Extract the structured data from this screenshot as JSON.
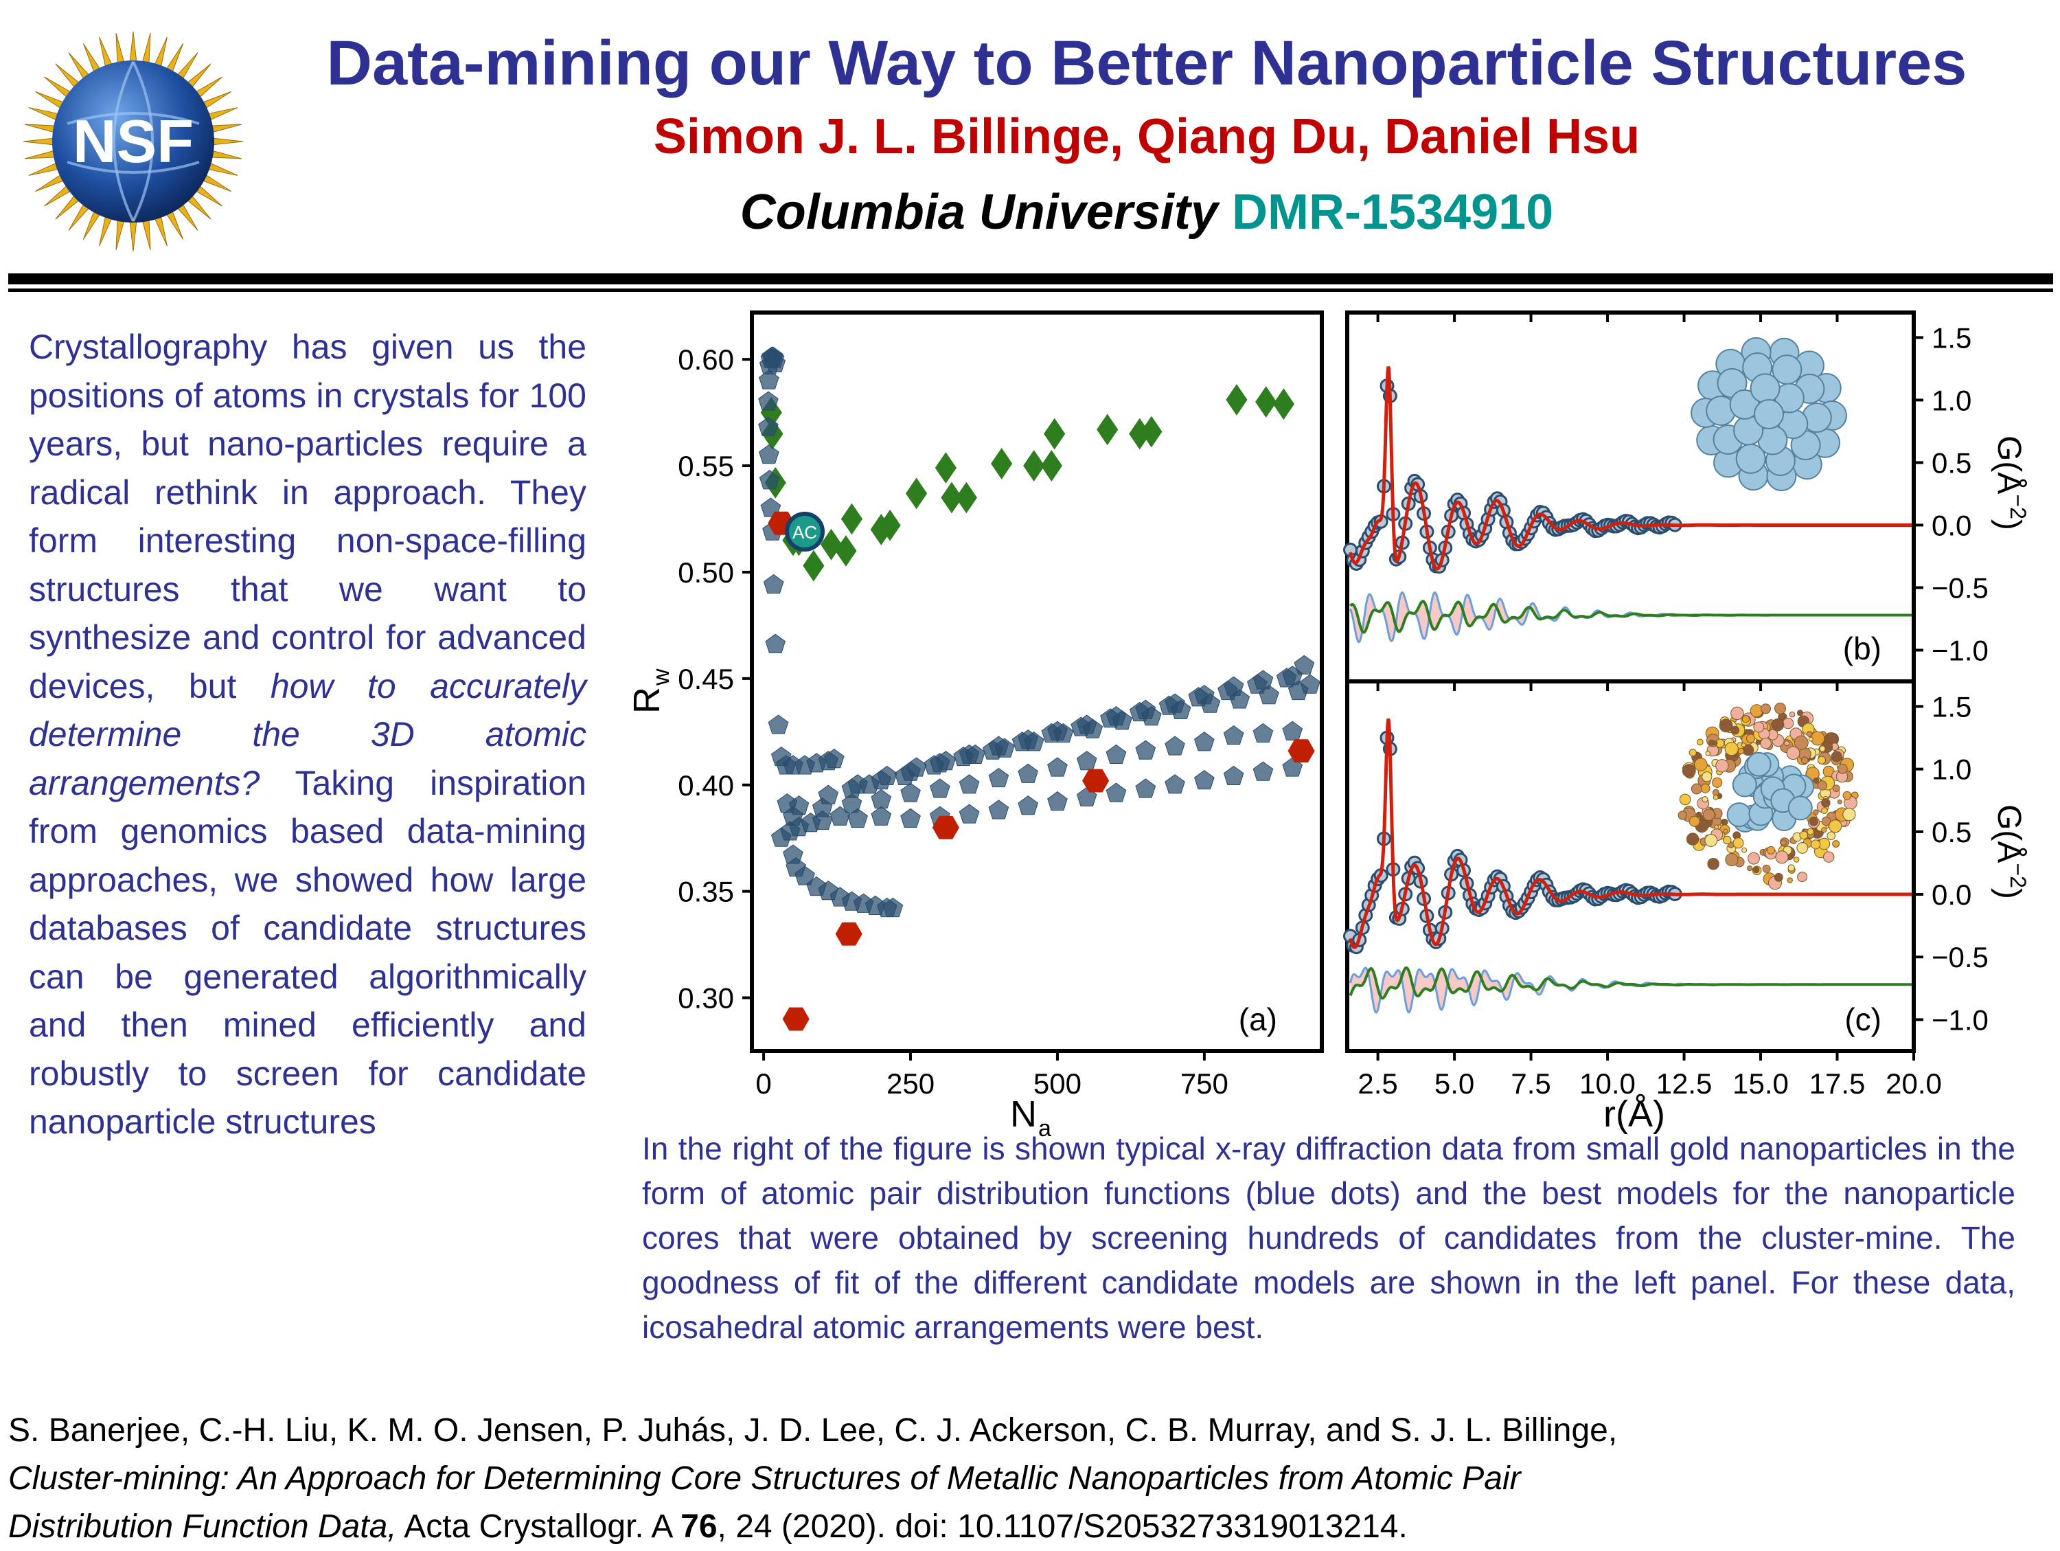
{
  "header": {
    "logo_text": "NSF",
    "title": "Data-mining our Way to Better Nanoparticle Structures",
    "authors": "Simon J. L. Billinge, Qiang Du, Daniel Hsu",
    "institution": "Columbia University",
    "award": "DMR-1534910"
  },
  "left_text": {
    "p1": "Crystallography has given us the positions of atoms in crystals for 100 years, but nano-particles require a radical rethink in approach. They form interesting non-space-filling structures that we want to synthesize and control for advanced devices, but ",
    "p2_italic": "how to accurately determine the 3D atomic arrangements?",
    "p3": " Taking inspiration from genomics based data-mining approaches, we showed how large databases of candidate structures can be generated algorithmically and then mined efficiently and robustly to screen for candidate nanoparticle structures"
  },
  "caption": "In the right of the figure is shown typical x-ray diffraction data from small gold nanoparticles in the form of atomic pair distribution functions (blue dots) and the best models for the nanoparticle cores that were obtained by screening hundreds of candidates from the cluster-mine. The goodness of fit of the different candidate models are shown in the left panel. For these data, icosahedral atomic arrangements were best.",
  "reference": {
    "authors": "S. Banerjee, C.-H. Liu, K. M. O. Jensen, P. Juhás, J. D. Lee, C. J. Ackerson, C. B. Murray, and S. J. L. Billinge,",
    "title_part1": "Cluster-mining: An Approach for Determining Core Structures of Metallic Nanoparticles from Atomic Pair",
    "title_part2": "Distribution Function Data,",
    "journal": " Acta Crystallogr. A ",
    "volume": "76",
    "rest": ", 24 (2020). doi: 10.1107/S2053273319013214."
  },
  "colors": {
    "title": "#2e3192",
    "authors": "#c00000",
    "award": "#00948f",
    "blue_points": "#2a4d6e",
    "green_points": "#2e7d1e",
    "red_points": "#c02000"
  },
  "chart_data": [
    {
      "type": "scatter",
      "panel_label": "(a)",
      "xlabel": "N",
      "xlabel_sub": "a",
      "ylabel": "R",
      "ylabel_sub": "w",
      "xlim": [
        -20,
        950
      ],
      "ylim": [
        0.275,
        0.622
      ],
      "xticks": [
        0,
        250,
        500,
        750
      ],
      "yticks": [
        0.3,
        0.35,
        0.4,
        0.45,
        0.5,
        0.55,
        0.6
      ],
      "ytick_labels": [
        "0.30",
        "0.35",
        "0.40",
        "0.45",
        "0.50",
        "0.55",
        "0.60"
      ],
      "annotation": "AC",
      "series": [
        {
          "marker": "diamond",
          "color": "#2e7d1e",
          "points": [
            [
              13,
              0.575
            ],
            [
              15,
              0.565
            ],
            [
              20,
              0.542
            ],
            [
              50,
              0.515
            ],
            [
              60,
              0.515
            ],
            [
              85,
              0.503
            ],
            [
              115,
              0.513
            ],
            [
              140,
              0.51
            ],
            [
              150,
              0.525
            ],
            [
              200,
              0.52
            ],
            [
              215,
              0.522
            ],
            [
              260,
              0.537
            ],
            [
              310,
              0.549
            ],
            [
              320,
              0.535
            ],
            [
              345,
              0.535
            ],
            [
              405,
              0.551
            ],
            [
              460,
              0.55
            ],
            [
              490,
              0.55
            ],
            [
              495,
              0.565
            ],
            [
              585,
              0.567
            ],
            [
              640,
              0.565
            ],
            [
              660,
              0.566
            ],
            [
              805,
              0.581
            ],
            [
              855,
              0.58
            ],
            [
              885,
              0.579
            ]
          ]
        },
        {
          "marker": "hexagon",
          "color": "#c02000",
          "points": [
            [
              30,
              0.523
            ],
            [
              55,
              0.29
            ],
            [
              145,
              0.33
            ],
            [
              310,
              0.38
            ],
            [
              565,
              0.402
            ],
            [
              915,
              0.416
            ]
          ]
        },
        {
          "marker": "pentagon",
          "color": "#2a4d6e",
          "points": [
            [
              10,
              0.597
            ],
            [
              12,
              0.6
            ],
            [
              14,
              0.601
            ],
            [
              16,
              0.601
            ],
            [
              18,
              0.6
            ],
            [
              20,
              0.598
            ],
            [
              9,
              0.59
            ],
            [
              8,
              0.58
            ],
            [
              8,
              0.568
            ],
            [
              9,
              0.555
            ],
            [
              10,
              0.543
            ],
            [
              12,
              0.53
            ],
            [
              15,
              0.519
            ],
            [
              17,
              0.494
            ],
            [
              20,
              0.466
            ],
            [
              25,
              0.428
            ],
            [
              30,
              0.413
            ],
            [
              38,
              0.409
            ],
            [
              50,
              0.409
            ],
            [
              70,
              0.409
            ],
            [
              90,
              0.41
            ],
            [
              110,
              0.411
            ],
            [
              120,
              0.412
            ],
            [
              40,
              0.391
            ],
            [
              45,
              0.378
            ],
            [
              50,
              0.367
            ],
            [
              55,
              0.361
            ],
            [
              70,
              0.357
            ],
            [
              90,
              0.352
            ],
            [
              110,
              0.35
            ],
            [
              130,
              0.347
            ],
            [
              150,
              0.345
            ],
            [
              170,
              0.344
            ],
            [
              190,
              0.343
            ],
            [
              210,
              0.342
            ],
            [
              220,
              0.342
            ],
            [
              30,
              0.375
            ],
            [
              60,
              0.38
            ],
            [
              80,
              0.382
            ],
            [
              100,
              0.383
            ],
            [
              130,
              0.385
            ],
            [
              160,
              0.384
            ],
            [
              200,
              0.385
            ],
            [
              250,
              0.384
            ],
            [
              300,
              0.385
            ],
            [
              350,
              0.386
            ],
            [
              400,
              0.388
            ],
            [
              450,
              0.39
            ],
            [
              500,
              0.392
            ],
            [
              550,
              0.394
            ],
            [
              600,
              0.396
            ],
            [
              650,
              0.398
            ],
            [
              700,
              0.4
            ],
            [
              750,
              0.402
            ],
            [
              800,
              0.404
            ],
            [
              850,
              0.406
            ],
            [
              900,
              0.408
            ],
            [
              50,
              0.385
            ],
            [
              100,
              0.389
            ],
            [
              150,
              0.391
            ],
            [
              200,
              0.393
            ],
            [
              250,
              0.396
            ],
            [
              300,
              0.398
            ],
            [
              350,
              0.4
            ],
            [
              400,
              0.403
            ],
            [
              450,
              0.405
            ],
            [
              500,
              0.408
            ],
            [
              550,
              0.411
            ],
            [
              600,
              0.414
            ],
            [
              650,
              0.416
            ],
            [
              700,
              0.418
            ],
            [
              750,
              0.42
            ],
            [
              800,
              0.423
            ],
            [
              850,
              0.424
            ],
            [
              900,
              0.425
            ],
            [
              60,
              0.39
            ],
            [
              110,
              0.395
            ],
            [
              160,
              0.4
            ],
            [
              210,
              0.404
            ],
            [
              260,
              0.408
            ],
            [
              310,
              0.411
            ],
            [
              360,
              0.414
            ],
            [
              410,
              0.417
            ],
            [
              460,
              0.42
            ],
            [
              510,
              0.424
            ],
            [
              560,
              0.426
            ],
            [
              610,
              0.43
            ],
            [
              660,
              0.432
            ],
            [
              710,
              0.435
            ],
            [
              760,
              0.438
            ],
            [
              810,
              0.44
            ],
            [
              860,
              0.442
            ],
            [
              910,
              0.444
            ],
            [
              150,
              0.398
            ],
            [
              200,
              0.402
            ],
            [
              250,
              0.406
            ],
            [
              300,
              0.41
            ],
            [
              350,
              0.414
            ],
            [
              400,
              0.418
            ],
            [
              450,
              0.421
            ],
            [
              500,
              0.425
            ],
            [
              550,
              0.428
            ],
            [
              600,
              0.432
            ],
            [
              650,
              0.435
            ],
            [
              700,
              0.438
            ],
            [
              750,
              0.442
            ],
            [
              800,
              0.446
            ],
            [
              850,
              0.449
            ],
            [
              900,
              0.451
            ],
            [
              180,
              0.4
            ],
            [
              240,
              0.404
            ],
            [
              290,
              0.409
            ],
            [
              340,
              0.413
            ],
            [
              390,
              0.416
            ],
            [
              440,
              0.42
            ],
            [
              490,
              0.424
            ],
            [
              540,
              0.427
            ],
            [
              590,
              0.431
            ],
            [
              640,
              0.434
            ],
            [
              690,
              0.437
            ],
            [
              740,
              0.441
            ],
            [
              790,
              0.444
            ],
            [
              840,
              0.447
            ],
            [
              890,
              0.45
            ],
            [
              930,
              0.447
            ],
            [
              920,
              0.456
            ]
          ]
        }
      ]
    },
    {
      "type": "line",
      "panel_label": "(b)",
      "xlim": [
        1.5,
        20.0
      ],
      "ylim": [
        -1.25,
        1.7
      ],
      "yticks": [
        -1.0,
        -0.5,
        0.0,
        0.5,
        1.0,
        1.5
      ],
      "ytick_labels": [
        "−1.0",
        "−0.5",
        "0.0",
        "0.5",
        "1.0",
        "1.5"
      ],
      "ylabel": "G(Å",
      "ylabel_exp": "−2",
      "ylabel_close": ")",
      "difference_offset": -0.72,
      "data_color": "#2a4d6e",
      "fit_color": "#d02010",
      "diff_colors": [
        "#2e7d1e",
        "#6a9fd8"
      ]
    },
    {
      "type": "line",
      "panel_label": "(c)",
      "xlim": [
        1.5,
        20.0
      ],
      "ylim": [
        -1.25,
        1.7
      ],
      "xticks": [
        2.5,
        5.0,
        7.5,
        10.0,
        12.5,
        15.0,
        17.5,
        20.0
      ],
      "xtick_labels": [
        "2.5",
        "5.0",
        "7.5",
        "10.0",
        "12.5",
        "15.0",
        "17.5",
        "20.0"
      ],
      "yticks": [
        -1.0,
        -0.5,
        0.0,
        0.5,
        1.0,
        1.5
      ],
      "ytick_labels": [
        "−1.0",
        "−0.5",
        "0.0",
        "0.5",
        "1.0",
        "1.5"
      ],
      "xlabel": "r(Å)",
      "ylabel": "G(Å",
      "ylabel_exp": "−2",
      "ylabel_close": ")",
      "difference_offset": -0.72,
      "data_color": "#2a4d6e",
      "fit_color": "#d02010",
      "diff_colors": [
        "#2e7d1e",
        "#6a9fd8"
      ]
    }
  ]
}
